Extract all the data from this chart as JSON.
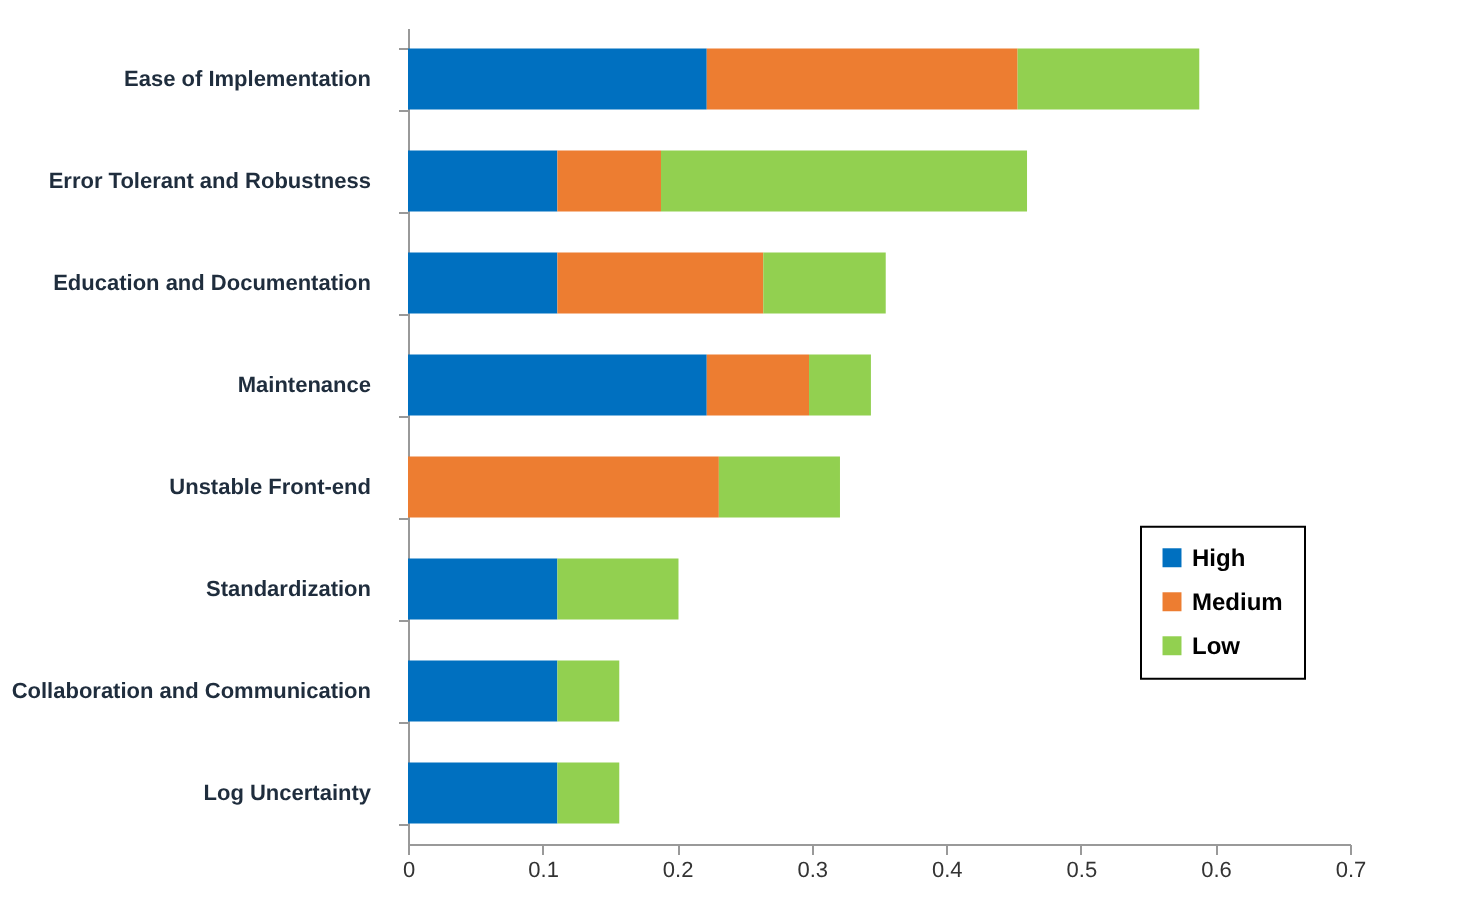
{
  "chart_data": {
    "type": "bar",
    "orientation": "horizontal",
    "stacked": true,
    "categories": [
      "Ease of Implementation",
      "Error Tolerant and Robustness",
      "Education and Documentation",
      "Maintenance",
      "Unstable Front-end",
      "Standardization",
      "Collaboration and Communication",
      "Log Uncertainty"
    ],
    "series": [
      {
        "name": "High",
        "color": "#0070c0",
        "values": [
          0.222,
          0.111,
          0.111,
          0.222,
          0,
          0.111,
          0.111,
          0.111
        ]
      },
      {
        "name": "Medium",
        "color": "#ed7d31",
        "values": [
          0.231,
          0.077,
          0.153,
          0.076,
          0.231,
          0,
          0,
          0
        ]
      },
      {
        "name": "Low",
        "color": "#92d050",
        "values": [
          0.135,
          0.272,
          0.091,
          0.046,
          0.09,
          0.09,
          0.046,
          0.046
        ]
      }
    ],
    "xlim": [
      0,
      0.7
    ],
    "xticks": [
      0,
      0.1,
      0.2,
      0.3,
      0.4,
      0.5,
      0.6,
      0.7
    ],
    "grid": false,
    "legend": "right"
  }
}
